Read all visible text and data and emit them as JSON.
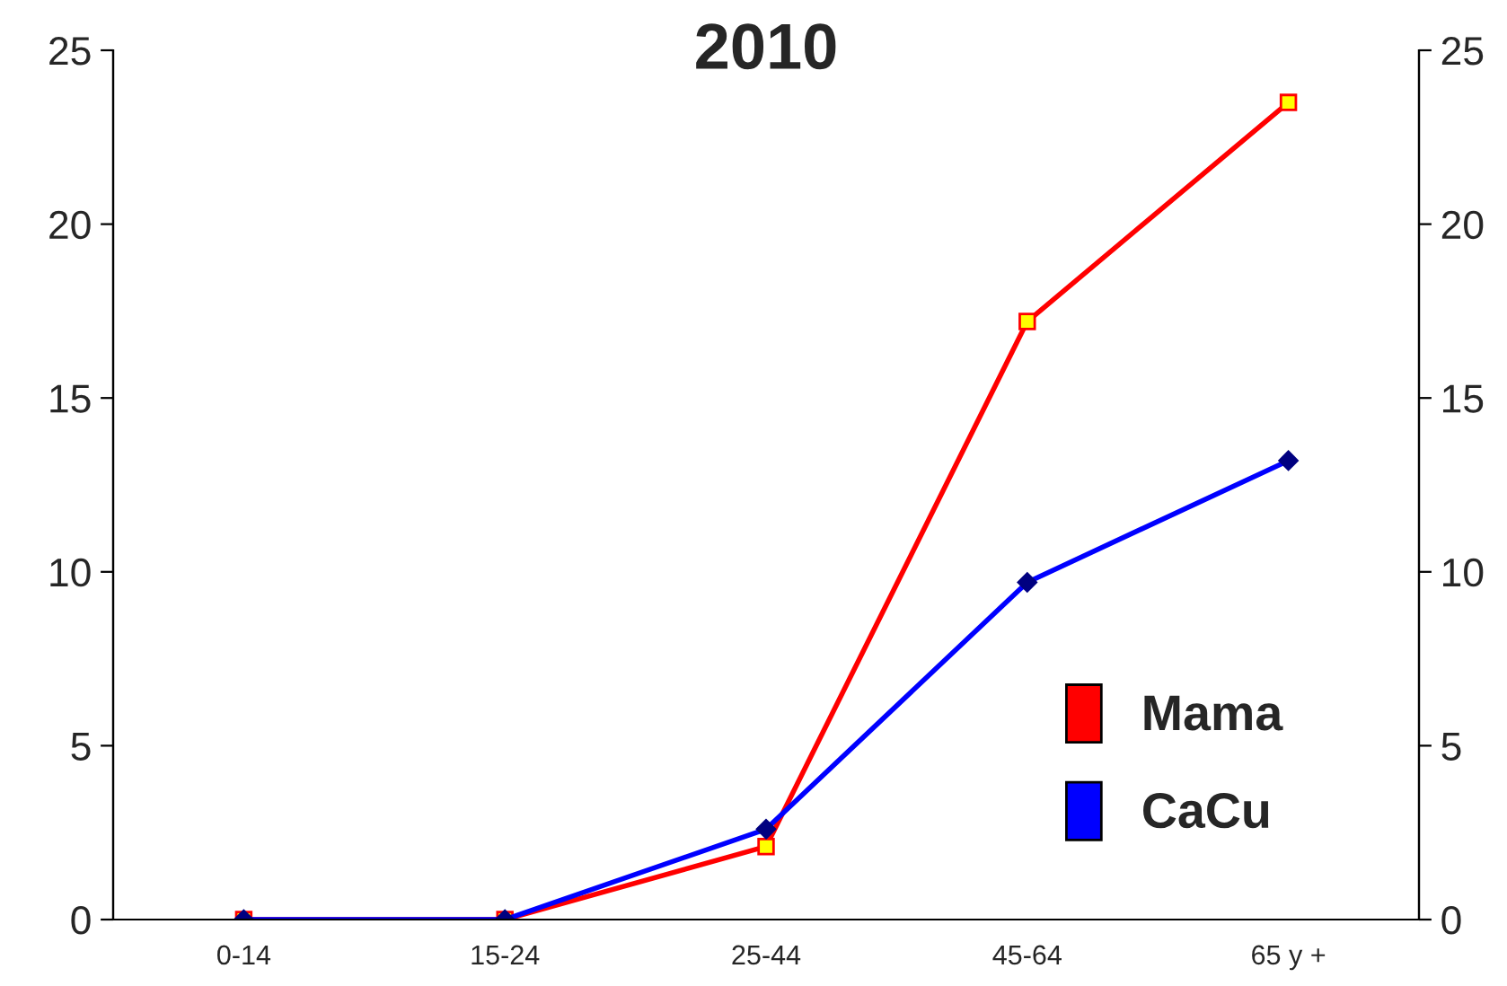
{
  "chart_data": {
    "type": "line",
    "title": "2010",
    "categories": [
      "0-14",
      "15-24",
      "25-44",
      "45-64",
      "65 y +"
    ],
    "series": [
      {
        "name": "Mama",
        "color": "#ff0000",
        "marker": "square",
        "values": [
          0,
          0,
          2.1,
          17.2,
          23.5
        ]
      },
      {
        "name": "CaCu",
        "color": "#0000ff",
        "marker": "diamond",
        "values": [
          0,
          0,
          2.6,
          9.7,
          13.2
        ]
      }
    ],
    "ylim": [
      0,
      25
    ],
    "yticks": [
      0,
      5,
      10,
      15,
      20,
      25
    ],
    "y2lim": [
      0,
      25
    ],
    "y2ticks": [
      0,
      5,
      10,
      15,
      20,
      25
    ],
    "grid": false,
    "legend": "bottom right"
  }
}
